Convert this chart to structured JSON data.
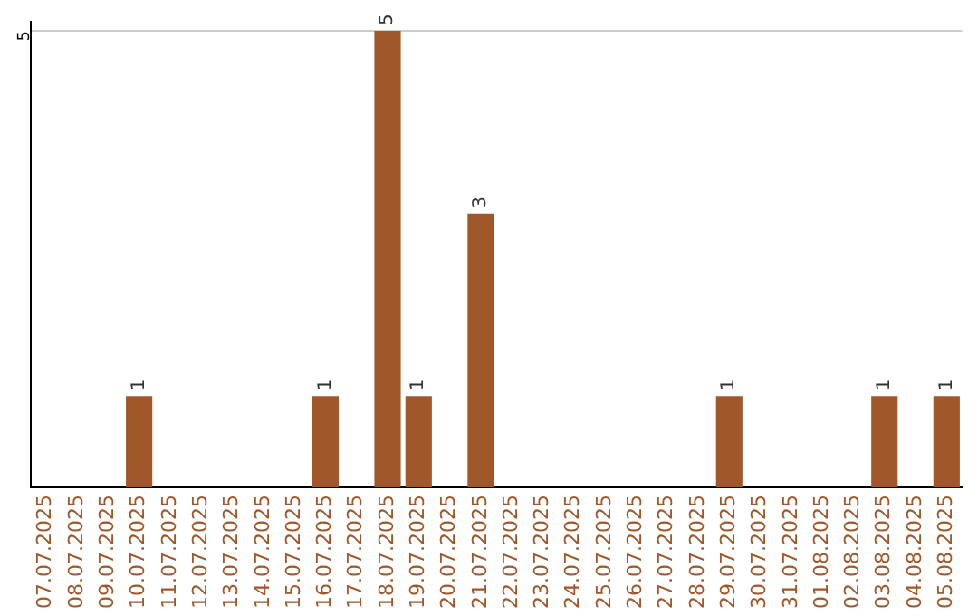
{
  "chart_data": {
    "type": "bar",
    "categories": [
      "07.07.2025",
      "08.07.2025",
      "09.07.2025",
      "10.07.2025",
      "11.07.2025",
      "12.07.2025",
      "13.07.2025",
      "14.07.2025",
      "15.07.2025",
      "16.07.2025",
      "17.07.2025",
      "18.07.2025",
      "19.07.2025",
      "20.07.2025",
      "21.07.2025",
      "22.07.2025",
      "23.07.2025",
      "24.07.2025",
      "25.07.2025",
      "26.07.2025",
      "27.07.2025",
      "28.07.2025",
      "29.07.2025",
      "30.07.2025",
      "31.07.2025",
      "01.08.2025",
      "02.08.2025",
      "03.08.2025",
      "04.08.2025",
      "05.08.2025"
    ],
    "values": [
      0,
      0,
      0,
      1,
      0,
      0,
      0,
      0,
      0,
      1,
      0,
      5,
      1,
      0,
      3,
      0,
      0,
      0,
      0,
      0,
      0,
      0,
      1,
      0,
      0,
      0,
      0,
      1,
      0,
      1
    ],
    "value_labels": [
      null,
      null,
      null,
      "1",
      null,
      null,
      null,
      null,
      null,
      "1",
      null,
      "5",
      "1",
      null,
      "3",
      null,
      null,
      null,
      null,
      null,
      null,
      null,
      "1",
      null,
      null,
      null,
      null,
      "1",
      null,
      "1"
    ],
    "color": "#a0572a",
    "ylim": [
      0,
      5.1
    ],
    "yticks": [
      5
    ],
    "grid": "y",
    "legend": false
  }
}
